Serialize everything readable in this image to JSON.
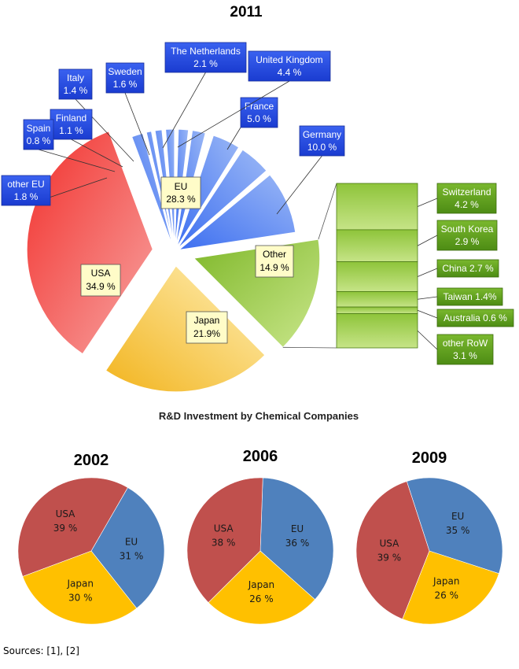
{
  "sources": "Sources: [1], [2]",
  "subtitle": "R&D Investment by Chemical Companies",
  "colors": {
    "eu_main": "#5b87f0",
    "usa_main": "#f0504e",
    "japan_main": "#f5c95a",
    "other_main": "#98c43c",
    "box_blue": "#1f48e0",
    "box_green": "#5a9a1c",
    "box_cream": "#fffcc8",
    "eu_small": "#4f81bd",
    "usa_small": "#c0504d",
    "japan_small": "#ffc000"
  },
  "chart_data": [
    {
      "type": "pie",
      "title": "2011",
      "slices": [
        {
          "label": "EU",
          "value": 28.3,
          "text": "28.3 %"
        },
        {
          "label": "Other",
          "value": 14.9,
          "text": "14.9 %"
        },
        {
          "label": "Japan",
          "value": 21.9,
          "text": "21.9%"
        },
        {
          "label": "USA",
          "value": 34.9,
          "text": "34.9 %"
        }
      ],
      "eu_breakdown": [
        {
          "label": "Germany",
          "value": 10.0,
          "text": "10.0 %"
        },
        {
          "label": "France",
          "value": 5.0,
          "text": "5.0 %"
        },
        {
          "label": "United Kingdom",
          "value": 4.4,
          "text": "4.4 %"
        },
        {
          "label": "The Netherlands",
          "value": 2.1,
          "text": "2.1 %"
        },
        {
          "label": "Sweden",
          "value": 1.6,
          "text": "1.6 %"
        },
        {
          "label": "Italy",
          "value": 1.4,
          "text": "1.4 %"
        },
        {
          "label": "Finland",
          "value": 1.1,
          "text": "1.1 %"
        },
        {
          "label": "Spain",
          "value": 0.8,
          "text": "0.8 %"
        },
        {
          "label": "other EU",
          "value": 1.8,
          "text": "1.8 %"
        }
      ],
      "other_breakdown": [
        {
          "label": "Switzerland",
          "value": 4.2,
          "text": "4.2 %"
        },
        {
          "label": "South Korea",
          "value": 2.9,
          "text": "2.9 %"
        },
        {
          "label": "China",
          "value": 2.7,
          "text": "China 2.7 %"
        },
        {
          "label": "Taiwan",
          "value": 1.4,
          "text": "Taiwan 1.4%"
        },
        {
          "label": "Australia",
          "value": 0.6,
          "text": "Australia  0.6 %"
        },
        {
          "label": "other RoW",
          "value": 3.1,
          "text": "3.1 %"
        }
      ]
    },
    {
      "type": "pie",
      "title": "2002",
      "slices": [
        {
          "label": "EU",
          "value": 31,
          "text": "31 %"
        },
        {
          "label": "Japan",
          "value": 30,
          "text": "30 %"
        },
        {
          "label": "USA",
          "value": 39,
          "text": "39 %"
        }
      ]
    },
    {
      "type": "pie",
      "title": "2006",
      "slices": [
        {
          "label": "EU",
          "value": 36,
          "text": "36 %"
        },
        {
          "label": "Japan",
          "value": 26,
          "text": "26 %"
        },
        {
          "label": "USA",
          "value": 38,
          "text": "38 %"
        }
      ]
    },
    {
      "type": "pie",
      "title": "2009",
      "slices": [
        {
          "label": "EU",
          "value": 35,
          "text": "35 %"
        },
        {
          "label": "Japan",
          "value": 26,
          "text": "26 %"
        },
        {
          "label": "USA",
          "value": 39,
          "text": "39 %"
        }
      ]
    }
  ]
}
